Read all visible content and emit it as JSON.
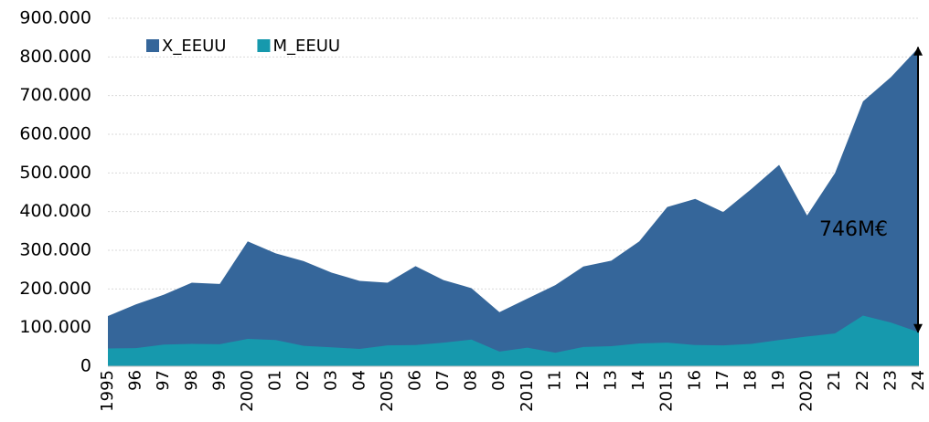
{
  "chart_data": {
    "type": "area",
    "categories": [
      "1995",
      "96",
      "97",
      "98",
      "99",
      "2000",
      "01",
      "02",
      "03",
      "04",
      "2005",
      "06",
      "07",
      "08",
      "09",
      "2010",
      "11",
      "12",
      "13",
      "14",
      "2015",
      "16",
      "17",
      "18",
      "19",
      "2020",
      "21",
      "22",
      "23",
      "24"
    ],
    "series": [
      {
        "name": "X_EEUU",
        "color": "#35669a",
        "values": [
          130000,
          160000,
          185000,
          216000,
          213000,
          323000,
          292000,
          272000,
          242000,
          221000,
          216000,
          259000,
          223000,
          202000,
          140000,
          175000,
          210000,
          258000,
          273000,
          323000,
          412000,
          433000,
          399000,
          458000,
          521000,
          390000,
          500000,
          685000,
          748000,
          825000
        ]
      },
      {
        "name": "M_EEUU",
        "color": "#1699ad",
        "values": [
          46000,
          47000,
          56000,
          58000,
          57000,
          71000,
          68000,
          53000,
          49000,
          45000,
          54000,
          55000,
          61000,
          69000,
          38000,
          48000,
          35000,
          50000,
          52000,
          59000,
          61000,
          55000,
          54000,
          58000,
          68000,
          77000,
          85000,
          131000,
          113000,
          88000
        ]
      }
    ],
    "ylim": [
      0,
      900000
    ],
    "yticks": [
      0,
      {
        "value": 100000,
        "label": "100.000"
      },
      {
        "value": 200000,
        "label": "200.000"
      },
      {
        "value": 300000,
        "label": "300.000"
      },
      {
        "value": 400000,
        "label": "400.000"
      },
      {
        "value": 500000,
        "label": "500.000"
      },
      {
        "value": 600000,
        "label": "600.000"
      },
      {
        "value": 700000,
        "label": "700.000"
      },
      {
        "value": 800000,
        "label": "800.000"
      },
      {
        "value": 900000,
        "label": "900.000"
      }
    ],
    "grid": true,
    "legend": "top-left",
    "annotation": "746M€"
  }
}
